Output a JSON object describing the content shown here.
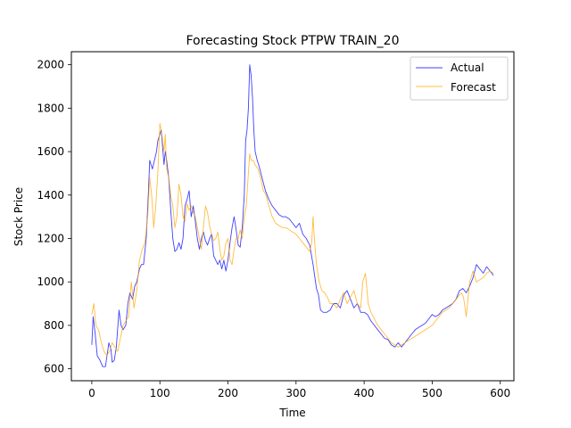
{
  "chart_data": {
    "type": "line",
    "title": "Forecasting Stock PTPW TRAIN_20",
    "xlabel": "Time",
    "ylabel": "Stock Price",
    "xlim": [
      -30,
      620
    ],
    "ylim": [
      545,
      2060
    ],
    "xticks": [
      0,
      100,
      200,
      300,
      400,
      500,
      600
    ],
    "yticks": [
      600,
      800,
      1000,
      1200,
      1400,
      1600,
      1800,
      2000
    ],
    "grid": false,
    "legend": "top-right",
    "series": [
      {
        "name": "Actual",
        "color": "#0000ff",
        "x": [
          0,
          2,
          5,
          8,
          12,
          16,
          20,
          25,
          28,
          30,
          33,
          36,
          40,
          43,
          46,
          50,
          53,
          56,
          60,
          63,
          66,
          70,
          73,
          76,
          80,
          83,
          85,
          87,
          89,
          92,
          95,
          97,
          100,
          102,
          104,
          106,
          108,
          110,
          113,
          116,
          119,
          122,
          125,
          128,
          131,
          134,
          137,
          140,
          143,
          146,
          149,
          152,
          155,
          158,
          161,
          164,
          167,
          170,
          173,
          176,
          179,
          182,
          185,
          188,
          191,
          194,
          197,
          200,
          203,
          206,
          209,
          212,
          215,
          218,
          221,
          224,
          226,
          228,
          230,
          232,
          234,
          236,
          238,
          240,
          243,
          246,
          250,
          255,
          260,
          265,
          270,
          275,
          280,
          285,
          290,
          295,
          300,
          305,
          310,
          315,
          320,
          325,
          330,
          333,
          336,
          340,
          345,
          350,
          355,
          360,
          365,
          370,
          375,
          380,
          385,
          390,
          395,
          400,
          405,
          410,
          415,
          420,
          425,
          430,
          435,
          440,
          445,
          450,
          455,
          460,
          465,
          470,
          475,
          480,
          485,
          490,
          495,
          500,
          505,
          510,
          515,
          520,
          525,
          530,
          535,
          540,
          545,
          550,
          555,
          560,
          565,
          570,
          575,
          580,
          585,
          590
        ],
        "values": [
          710,
          840,
          760,
          660,
          640,
          610,
          610,
          720,
          690,
          630,
          640,
          700,
          870,
          800,
          780,
          800,
          900,
          950,
          920,
          980,
          1000,
          1060,
          1080,
          1080,
          1200,
          1400,
          1560,
          1540,
          1520,
          1560,
          1600,
          1650,
          1680,
          1700,
          1620,
          1540,
          1600,
          1560,
          1480,
          1330,
          1200,
          1140,
          1150,
          1180,
          1150,
          1200,
          1350,
          1380,
          1420,
          1300,
          1350,
          1280,
          1200,
          1150,
          1200,
          1230,
          1190,
          1170,
          1200,
          1220,
          1120,
          1100,
          1080,
          1100,
          1060,
          1100,
          1050,
          1100,
          1180,
          1250,
          1300,
          1240,
          1170,
          1160,
          1250,
          1400,
          1650,
          1700,
          1800,
          2000,
          1950,
          1850,
          1700,
          1600,
          1560,
          1530,
          1480,
          1420,
          1380,
          1350,
          1330,
          1310,
          1300,
          1300,
          1290,
          1270,
          1250,
          1270,
          1220,
          1200,
          1170,
          1080,
          970,
          940,
          870,
          860,
          860,
          870,
          900,
          900,
          880,
          940,
          960,
          920,
          880,
          900,
          860,
          860,
          850,
          820,
          800,
          780,
          760,
          740,
          735,
          710,
          700,
          720,
          700,
          720,
          740,
          760,
          780,
          790,
          800,
          810,
          830,
          850,
          840,
          850,
          870,
          880,
          890,
          900,
          920,
          960,
          970,
          950,
          980,
          1020,
          1080,
          1060,
          1040,
          1070,
          1050,
          1030
        ]
      },
      {
        "name": "Forecast",
        "color": "#ffa500",
        "x": [
          0,
          3,
          6,
          10,
          14,
          18,
          22,
          26,
          30,
          34,
          38,
          42,
          46,
          50,
          54,
          58,
          62,
          66,
          70,
          74,
          78,
          82,
          85,
          88,
          91,
          94,
          97,
          100,
          102,
          104,
          106,
          108,
          110,
          113,
          116,
          119,
          122,
          125,
          128,
          131,
          134,
          137,
          140,
          143,
          146,
          149,
          152,
          155,
          158,
          161,
          164,
          167,
          170,
          173,
          176,
          179,
          182,
          185,
          188,
          191,
          194,
          197,
          200,
          203,
          206,
          209,
          212,
          215,
          218,
          221,
          224,
          227,
          230,
          232,
          234,
          237,
          240,
          244,
          248,
          252,
          256,
          260,
          265,
          270,
          275,
          280,
          285,
          290,
          295,
          300,
          305,
          310,
          315,
          320,
          323,
          325,
          327,
          330,
          334,
          338,
          342,
          346,
          350,
          355,
          360,
          365,
          370,
          375,
          380,
          385,
          390,
          395,
          398,
          402,
          406,
          410,
          415,
          420,
          425,
          430,
          435,
          440,
          445,
          450,
          455,
          460,
          465,
          470,
          475,
          480,
          485,
          490,
          495,
          500,
          505,
          510,
          515,
          520,
          525,
          530,
          535,
          540,
          543,
          546,
          550,
          555,
          560,
          565,
          570,
          575,
          580,
          585,
          590
        ],
        "values": [
          850,
          900,
          800,
          780,
          720,
          680,
          660,
          680,
          720,
          700,
          680,
          740,
          800,
          820,
          840,
          1000,
          880,
          960,
          1100,
          1150,
          1180,
          1300,
          1480,
          1400,
          1250,
          1350,
          1500,
          1730,
          1700,
          1650,
          1600,
          1680,
          1520,
          1480,
          1400,
          1350,
          1250,
          1300,
          1450,
          1400,
          1300,
          1280,
          1360,
          1330,
          1350,
          1320,
          1300,
          1250,
          1200,
          1150,
          1250,
          1350,
          1320,
          1260,
          1220,
          1190,
          1200,
          1230,
          1150,
          1100,
          1120,
          1180,
          1200,
          1100,
          1080,
          1150,
          1200,
          1200,
          1240,
          1200,
          1300,
          1350,
          1500,
          1590,
          1560,
          1560,
          1540,
          1520,
          1480,
          1420,
          1400,
          1350,
          1300,
          1270,
          1260,
          1250,
          1250,
          1240,
          1230,
          1220,
          1200,
          1180,
          1160,
          1140,
          1180,
          1300,
          1200,
          1080,
          1000,
          960,
          950,
          930,
          900,
          900,
          880,
          920,
          950,
          900,
          930,
          960,
          900,
          880,
          1000,
          1040,
          900,
          860,
          830,
          800,
          780,
          760,
          740,
          720,
          710,
          700,
          710,
          720,
          730,
          740,
          750,
          760,
          770,
          780,
          790,
          800,
          820,
          840,
          860,
          870,
          880,
          900,
          920,
          940,
          950,
          930,
          840,
          1000,
          1050,
          1000,
          1010,
          1020,
          1040,
          1050,
          1040
        ]
      }
    ]
  }
}
